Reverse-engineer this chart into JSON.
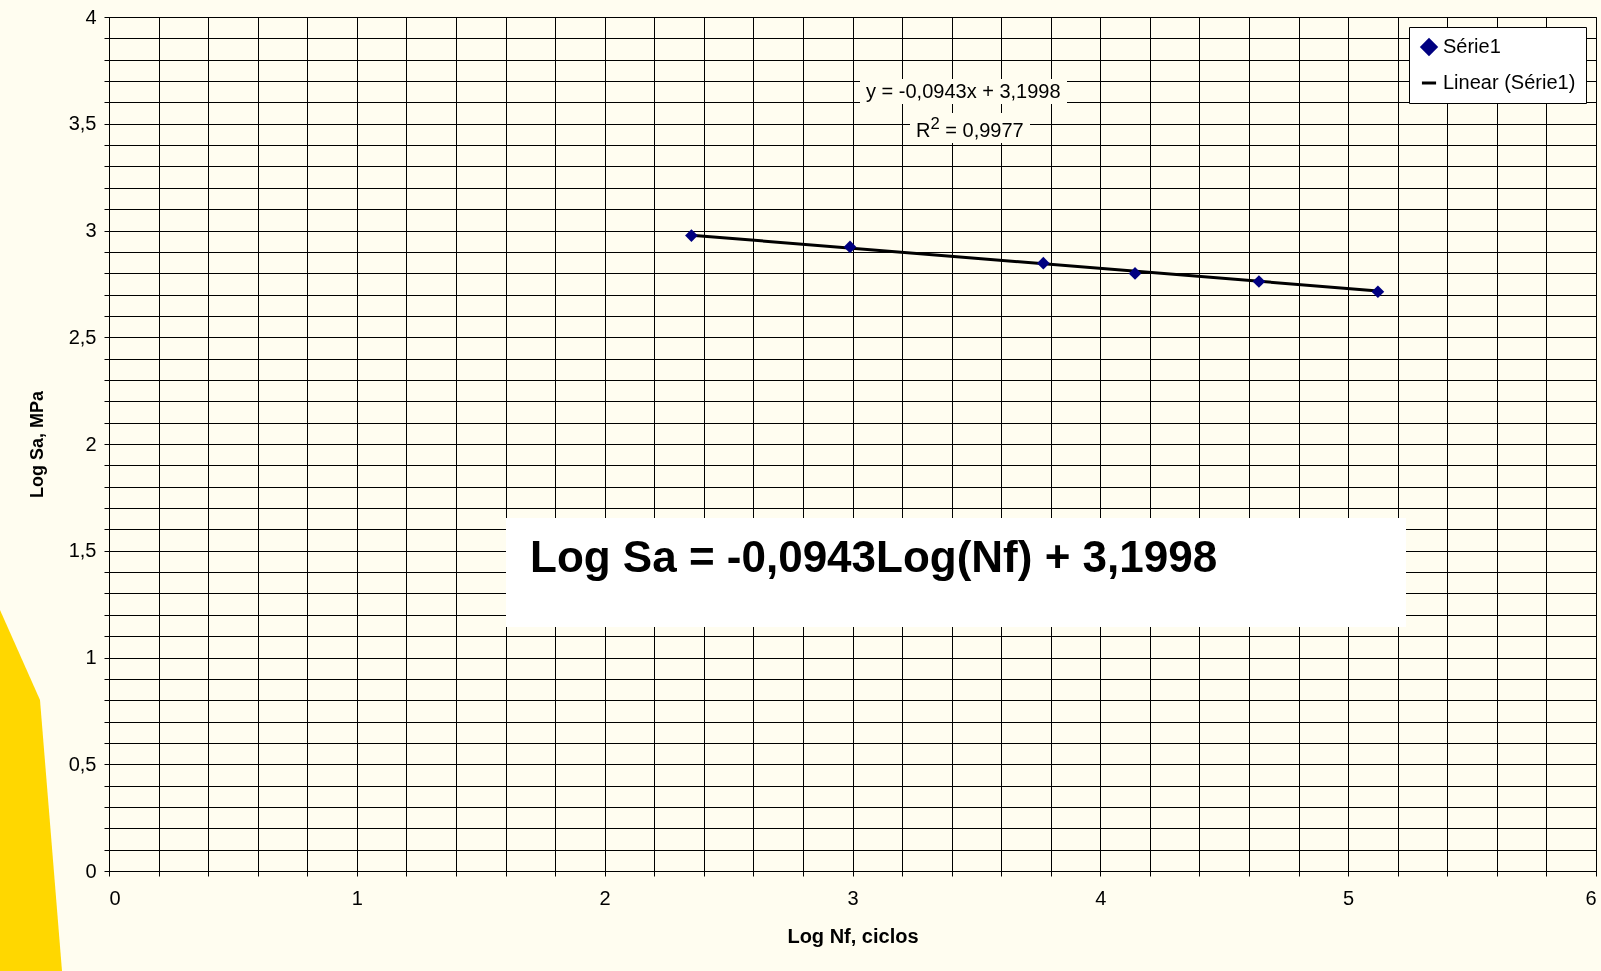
{
  "chart_data": {
    "type": "scatter",
    "xlabel": "Log Nf, ciclos",
    "ylabel": "Log Sa, MPa",
    "xlim": [
      0,
      6
    ],
    "ylim": [
      0,
      4
    ],
    "xticks": [
      0,
      {
        "value": 0.2,
        "label": null
      },
      {
        "value": 0.4,
        "label": null
      },
      {
        "value": 0.6,
        "label": null
      },
      {
        "value": 0.8,
        "label": null
      },
      1,
      {
        "value": 1.2,
        "label": null
      },
      {
        "value": 1.4,
        "label": null
      },
      {
        "value": 1.6,
        "label": null
      },
      {
        "value": 1.8,
        "label": null
      },
      2,
      {
        "value": 2.2,
        "label": null
      },
      {
        "value": 2.4,
        "label": null
      },
      {
        "value": 2.6,
        "label": null
      },
      {
        "value": 2.8,
        "label": null
      },
      3,
      {
        "value": 3.2,
        "label": null
      },
      {
        "value": 3.4,
        "label": null
      },
      {
        "value": 3.6,
        "label": null
      },
      {
        "value": 3.8,
        "label": null
      },
      4,
      {
        "value": 4.2,
        "label": null
      },
      {
        "value": 4.4,
        "label": null
      },
      {
        "value": 4.6,
        "label": null
      },
      {
        "value": 4.8,
        "label": null
      },
      5,
      {
        "value": 5.2,
        "label": null
      },
      {
        "value": 5.4,
        "label": null
      },
      {
        "value": 5.6,
        "label": null
      },
      {
        "value": 5.8,
        "label": null
      },
      6
    ],
    "yticks": [
      0,
      {
        "value": 0.1,
        "label": null
      },
      {
        "value": 0.2,
        "label": null
      },
      {
        "value": 0.3,
        "label": null
      },
      {
        "value": 0.4,
        "label": null
      },
      {
        "value": 0.5,
        "label": "0,5"
      },
      {
        "value": 0.6,
        "label": null
      },
      {
        "value": 0.7,
        "label": null
      },
      {
        "value": 0.8,
        "label": null
      },
      {
        "value": 0.9,
        "label": null
      },
      1,
      {
        "value": 1.1,
        "label": null
      },
      {
        "value": 1.2,
        "label": null
      },
      {
        "value": 1.3,
        "label": null
      },
      {
        "value": 1.4,
        "label": null
      },
      {
        "value": 1.5,
        "label": "1,5"
      },
      {
        "value": 1.6,
        "label": null
      },
      {
        "value": 1.7,
        "label": null
      },
      {
        "value": 1.8,
        "label": null
      },
      {
        "value": 1.9,
        "label": null
      },
      2,
      {
        "value": 2.1,
        "label": null
      },
      {
        "value": 2.2,
        "label": null
      },
      {
        "value": 2.3,
        "label": null
      },
      {
        "value": 2.4,
        "label": null
      },
      {
        "value": 2.5,
        "label": "2,5"
      },
      {
        "value": 2.6,
        "label": null
      },
      {
        "value": 2.7,
        "label": null
      },
      {
        "value": 2.8,
        "label": null
      },
      {
        "value": 2.9,
        "label": null
      },
      3,
      {
        "value": 3.1,
        "label": null
      },
      {
        "value": 3.2,
        "label": null
      },
      {
        "value": 3.3,
        "label": null
      },
      {
        "value": 3.4,
        "label": null
      },
      {
        "value": 3.5,
        "label": "3,5"
      },
      {
        "value": 3.6,
        "label": null
      },
      {
        "value": 3.7,
        "label": null
      },
      {
        "value": 3.8,
        "label": null
      },
      {
        "value": 3.9,
        "label": null
      },
      4
    ],
    "grid": true,
    "legend": "top right",
    "series": [
      {
        "name": "Série1",
        "marker": "diamond",
        "color": "#000080",
        "x": [
          2.35,
          2.99,
          3.77,
          4.14,
          4.64,
          5.12
        ],
        "values": [
          2.976,
          2.923,
          2.847,
          2.799,
          2.761,
          2.713
        ]
      },
      {
        "name": "Linear (Série1)",
        "type": "line",
        "color": "#000000",
        "x": [
          2.35,
          5.12
        ],
        "values": [
          2.978,
          2.717
        ]
      }
    ],
    "annotations": [
      "y = -0,0943x + 3,1998",
      "R$^{2}$ = 0,9977",
      "Log Sa = -0,0943Log(Nf) + 3,1998"
    ]
  }
}
